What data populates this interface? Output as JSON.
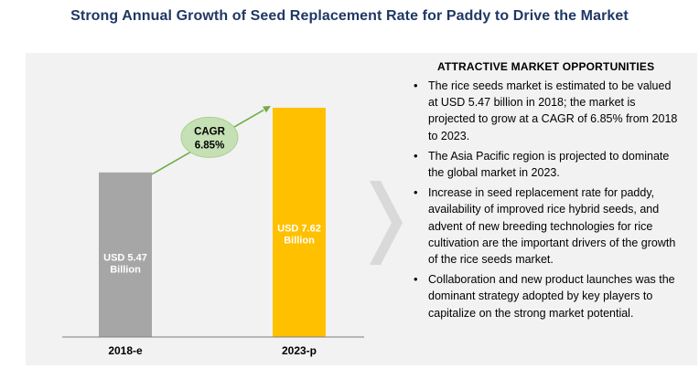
{
  "title": "Strong Annual Growth of Seed Replacement Rate for Paddy to Drive the Market",
  "chart_data": {
    "type": "bar",
    "categories": [
      "2018-e",
      "2023-p"
    ],
    "values": [
      5.47,
      7.62
    ],
    "data_labels": [
      [
        "USD 5.47",
        "Billion"
      ],
      [
        "USD 7.62",
        "Billion"
      ]
    ],
    "bar_colors": [
      "#a6a6a6",
      "#ffc000"
    ],
    "annotation": [
      "CAGR",
      "6.85%"
    ],
    "annotation_color": "#c5e0b4",
    "arrow_color": "#70ad47",
    "ylim": [
      0,
      7.62
    ],
    "grid": false,
    "legend": "none"
  },
  "opportunities": {
    "heading": "ATTRACTIVE MARKET OPPORTUNITIES",
    "bullet": "•",
    "items": [
      "The rice seeds market is estimated to be valued at USD 5.47 billion in 2018; the market is projected to grow at a CAGR of 6.85% from 2018 to 2023.",
      "The Asia Pacific region is projected to dominate the global market in 2023.",
      "Increase in seed replacement rate for paddy, availability of improved rice hybrid seeds, and advent of new breeding technologies for rice cultivation are the important drivers of the growth of the rice seeds market.",
      "Collaboration and new product launches was the dominant strategy adopted by key players to capitalize on the strong market potential."
    ]
  },
  "colors": {
    "title": "#1f3864",
    "panel": "#f2f2f2",
    "chevron": "#d9d9d9"
  }
}
